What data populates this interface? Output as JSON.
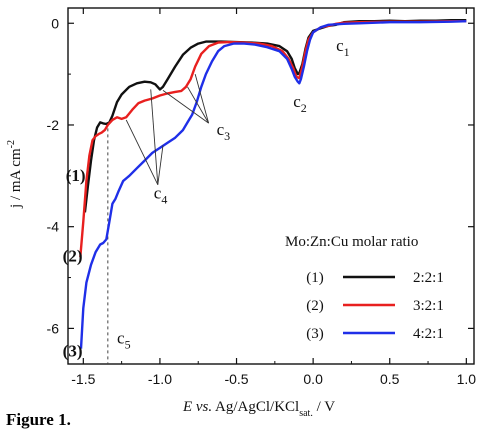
{
  "figure_caption": "Figure 1.",
  "chart_data": {
    "type": "line",
    "xlabel": {
      "italic": "E vs.",
      "main": " Ag/AgCl/KCl",
      "sub": "sat.",
      "unit": " / V"
    },
    "ylabel": {
      "main": "j / mA cm",
      "sup": "-2"
    },
    "xlim": [
      -1.6,
      1.05
    ],
    "ylim": [
      -6.7,
      0.3
    ],
    "xticks": [
      -1.5,
      -1.0,
      -0.5,
      0.0,
      0.5,
      1.0
    ],
    "xtick_labels": [
      "-1.5",
      "-1.0",
      "-0.5",
      "0.0",
      "0.5",
      "1.0"
    ],
    "yticks": [
      0,
      -2,
      -4,
      -6
    ],
    "ytick_labels": [
      "0",
      "-2",
      "-4",
      "-6"
    ],
    "legend": {
      "title": "Mo:Zn:Cu molar ratio",
      "placement": "lower-right",
      "entries": [
        {
          "tag": "(1)",
          "label": "2:2:1",
          "color": "#111111"
        },
        {
          "tag": "(2)",
          "label": "3:2:1",
          "color": "#e8201f"
        },
        {
          "tag": "(3)",
          "label": "4:2:1",
          "color": "#1f2fe8"
        }
      ]
    },
    "series": [
      {
        "tag": "(1)",
        "color": "#111111",
        "points": [
          [
            -1.49,
            -3.72
          ],
          [
            -1.47,
            -3.2
          ],
          [
            -1.45,
            -2.7
          ],
          [
            -1.43,
            -2.3
          ],
          [
            -1.41,
            -2.05
          ],
          [
            -1.39,
            -1.95
          ],
          [
            -1.37,
            -1.97
          ],
          [
            -1.35,
            -1.98
          ],
          [
            -1.33,
            -1.95
          ],
          [
            -1.31,
            -1.82
          ],
          [
            -1.28,
            -1.55
          ],
          [
            -1.25,
            -1.4
          ],
          [
            -1.2,
            -1.25
          ],
          [
            -1.15,
            -1.18
          ],
          [
            -1.1,
            -1.15
          ],
          [
            -1.06,
            -1.16
          ],
          [
            -1.03,
            -1.2
          ],
          [
            -1.0,
            -1.3
          ],
          [
            -0.98,
            -1.25
          ],
          [
            -0.95,
            -1.1
          ],
          [
            -0.9,
            -0.85
          ],
          [
            -0.85,
            -0.62
          ],
          [
            -0.8,
            -0.48
          ],
          [
            -0.75,
            -0.4
          ],
          [
            -0.7,
            -0.36
          ],
          [
            -0.6,
            -0.36
          ],
          [
            -0.5,
            -0.37
          ],
          [
            -0.4,
            -0.38
          ],
          [
            -0.3,
            -0.4
          ],
          [
            -0.22,
            -0.45
          ],
          [
            -0.17,
            -0.55
          ],
          [
            -0.14,
            -0.7
          ],
          [
            -0.12,
            -0.88
          ],
          [
            -0.1,
            -1.0
          ],
          [
            -0.09,
            -0.98
          ],
          [
            -0.07,
            -0.8
          ],
          [
            -0.05,
            -0.5
          ],
          [
            -0.03,
            -0.28
          ],
          [
            0.0,
            -0.15
          ],
          [
            0.05,
            -0.1
          ],
          [
            0.1,
            -0.05
          ],
          [
            0.15,
            -0.03
          ],
          [
            0.2,
            0.02
          ],
          [
            0.3,
            0.04
          ],
          [
            0.4,
            0.04
          ],
          [
            0.5,
            0.05
          ],
          [
            0.6,
            0.04
          ],
          [
            0.7,
            0.05
          ],
          [
            0.8,
            0.05
          ],
          [
            0.9,
            0.06
          ],
          [
            1.0,
            0.06
          ]
        ]
      },
      {
        "tag": "(2)",
        "color": "#e8201f",
        "points": [
          [
            -1.52,
            -4.6
          ],
          [
            -1.5,
            -3.9
          ],
          [
            -1.48,
            -3.1
          ],
          [
            -1.46,
            -2.6
          ],
          [
            -1.44,
            -2.3
          ],
          [
            -1.42,
            -2.22
          ],
          [
            -1.4,
            -2.18
          ],
          [
            -1.38,
            -2.15
          ],
          [
            -1.36,
            -2.1
          ],
          [
            -1.34,
            -2.0
          ],
          [
            -1.31,
            -1.9
          ],
          [
            -1.28,
            -1.85
          ],
          [
            -1.25,
            -1.88
          ],
          [
            -1.22,
            -1.85
          ],
          [
            -1.18,
            -1.7
          ],
          [
            -1.14,
            -1.57
          ],
          [
            -1.1,
            -1.52
          ],
          [
            -1.05,
            -1.48
          ],
          [
            -1.0,
            -1.42
          ],
          [
            -0.95,
            -1.38
          ],
          [
            -0.9,
            -1.35
          ],
          [
            -0.86,
            -1.33
          ],
          [
            -0.83,
            -1.25
          ],
          [
            -0.8,
            -1.1
          ],
          [
            -0.77,
            -0.85
          ],
          [
            -0.73,
            -0.6
          ],
          [
            -0.68,
            -0.45
          ],
          [
            -0.62,
            -0.38
          ],
          [
            -0.55,
            -0.37
          ],
          [
            -0.45,
            -0.38
          ],
          [
            -0.35,
            -0.4
          ],
          [
            -0.27,
            -0.45
          ],
          [
            -0.2,
            -0.55
          ],
          [
            -0.16,
            -0.7
          ],
          [
            -0.13,
            -0.88
          ],
          [
            -0.11,
            -1.05
          ],
          [
            -0.09,
            -1.08
          ],
          [
            -0.07,
            -0.85
          ],
          [
            -0.05,
            -0.55
          ],
          [
            -0.03,
            -0.32
          ],
          [
            0.0,
            -0.18
          ],
          [
            0.05,
            -0.08
          ],
          [
            0.1,
            -0.05
          ],
          [
            0.15,
            -0.01
          ],
          [
            0.2,
            0.01
          ],
          [
            0.3,
            0.02
          ],
          [
            0.5,
            0.03
          ],
          [
            0.7,
            0.03
          ],
          [
            0.9,
            0.04
          ],
          [
            1.0,
            0.04
          ]
        ]
      },
      {
        "tag": "(3)",
        "color": "#1f2fe8",
        "points": [
          [
            -1.515,
            -6.4
          ],
          [
            -1.5,
            -5.6
          ],
          [
            -1.48,
            -5.1
          ],
          [
            -1.45,
            -4.75
          ],
          [
            -1.42,
            -4.5
          ],
          [
            -1.39,
            -4.35
          ],
          [
            -1.37,
            -4.32
          ],
          [
            -1.35,
            -4.25
          ],
          [
            -1.33,
            -3.9
          ],
          [
            -1.31,
            -3.55
          ],
          [
            -1.29,
            -3.45
          ],
          [
            -1.27,
            -3.3
          ],
          [
            -1.24,
            -3.1
          ],
          [
            -1.2,
            -3.0
          ],
          [
            -1.15,
            -2.85
          ],
          [
            -1.1,
            -2.7
          ],
          [
            -1.05,
            -2.55
          ],
          [
            -1.0,
            -2.45
          ],
          [
            -0.95,
            -2.35
          ],
          [
            -0.9,
            -2.25
          ],
          [
            -0.85,
            -2.1
          ],
          [
            -0.82,
            -1.95
          ],
          [
            -0.79,
            -1.8
          ],
          [
            -0.76,
            -1.55
          ],
          [
            -0.73,
            -1.25
          ],
          [
            -0.7,
            -1.0
          ],
          [
            -0.66,
            -0.75
          ],
          [
            -0.62,
            -0.55
          ],
          [
            -0.58,
            -0.45
          ],
          [
            -0.52,
            -0.4
          ],
          [
            -0.45,
            -0.4
          ],
          [
            -0.38,
            -0.42
          ],
          [
            -0.3,
            -0.47
          ],
          [
            -0.22,
            -0.55
          ],
          [
            -0.17,
            -0.7
          ],
          [
            -0.14,
            -0.9
          ],
          [
            -0.12,
            -1.05
          ],
          [
            -0.1,
            -1.15
          ],
          [
            -0.09,
            -1.18
          ],
          [
            -0.08,
            -1.1
          ],
          [
            -0.06,
            -0.85
          ],
          [
            -0.04,
            -0.55
          ],
          [
            -0.02,
            -0.32
          ],
          [
            0.0,
            -0.18
          ],
          [
            0.05,
            -0.08
          ],
          [
            0.1,
            -0.03
          ],
          [
            0.2,
            -0.01
          ],
          [
            0.3,
            0.0
          ],
          [
            0.5,
            0.02
          ],
          [
            0.7,
            0.02
          ],
          [
            0.9,
            0.03
          ],
          [
            1.0,
            0.04
          ]
        ]
      }
    ],
    "curve_labels": [
      {
        "text": "(1)",
        "color": "#111111",
        "x": -1.55,
        "y": -3.1
      },
      {
        "text": "(2)",
        "color": "#e8201f",
        "x": -1.57,
        "y": -4.68
      },
      {
        "text": "(3)",
        "color": "#1f2fe8",
        "x": -1.57,
        "y": -6.55
      }
    ],
    "annotations": [
      {
        "label": "c",
        "sub": "1",
        "x": 0.15,
        "y": -0.55
      },
      {
        "label": "c",
        "sub": "2",
        "x": -0.13,
        "y": -1.65
      },
      {
        "label": "c",
        "sub": "3",
        "x": -0.63,
        "y": -2.2
      },
      {
        "label": "c",
        "sub": "4",
        "x": -1.04,
        "y": -3.45
      },
      {
        "label": "c",
        "sub": "5",
        "x": -1.28,
        "y": -6.3
      }
    ],
    "vline": {
      "x": -1.34,
      "style": "dashed"
    }
  }
}
